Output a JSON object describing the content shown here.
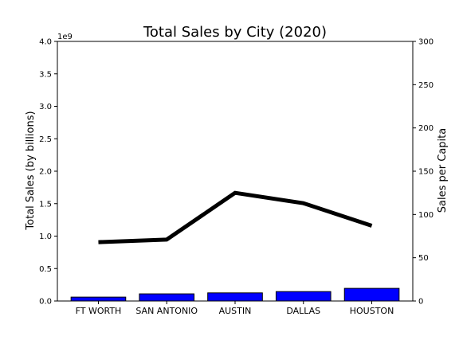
{
  "chart_data": {
    "type": "bar",
    "title": "Total Sales by City (2020)",
    "categories": [
      "FT WORTH",
      "SAN ANTONIO",
      "AUSTIN",
      "DALLAS",
      "HOUSTON"
    ],
    "bar_series": {
      "values": [
        60000000,
        110000000,
        125000000,
        145000000,
        195000000
      ],
      "color": "#0000ff",
      "edge_color": "#000000"
    },
    "line_series": {
      "values": [
        68,
        71,
        125,
        113,
        87
      ],
      "color": "#000000"
    },
    "y_left": {
      "label": "Total Sales (by billions)",
      "lim": [
        0,
        4000000000
      ],
      "ticks": [
        0,
        500000000,
        1000000000,
        1500000000,
        2000000000,
        2500000000,
        3000000000,
        3500000000,
        4000000000
      ],
      "tick_labels": [
        "0.0",
        "0.5",
        "1.0",
        "1.5",
        "2.0",
        "2.5",
        "3.0",
        "3.5",
        "4.0"
      ],
      "offset_text": "1e9"
    },
    "y_right": {
      "label": "Sales per Capita",
      "lim": [
        0,
        300
      ],
      "ticks": [
        0,
        50,
        100,
        150,
        200,
        250,
        300
      ],
      "tick_labels": [
        "0",
        "50",
        "100",
        "150",
        "200",
        "250",
        "300"
      ]
    },
    "grid": false,
    "legend": "none"
  }
}
